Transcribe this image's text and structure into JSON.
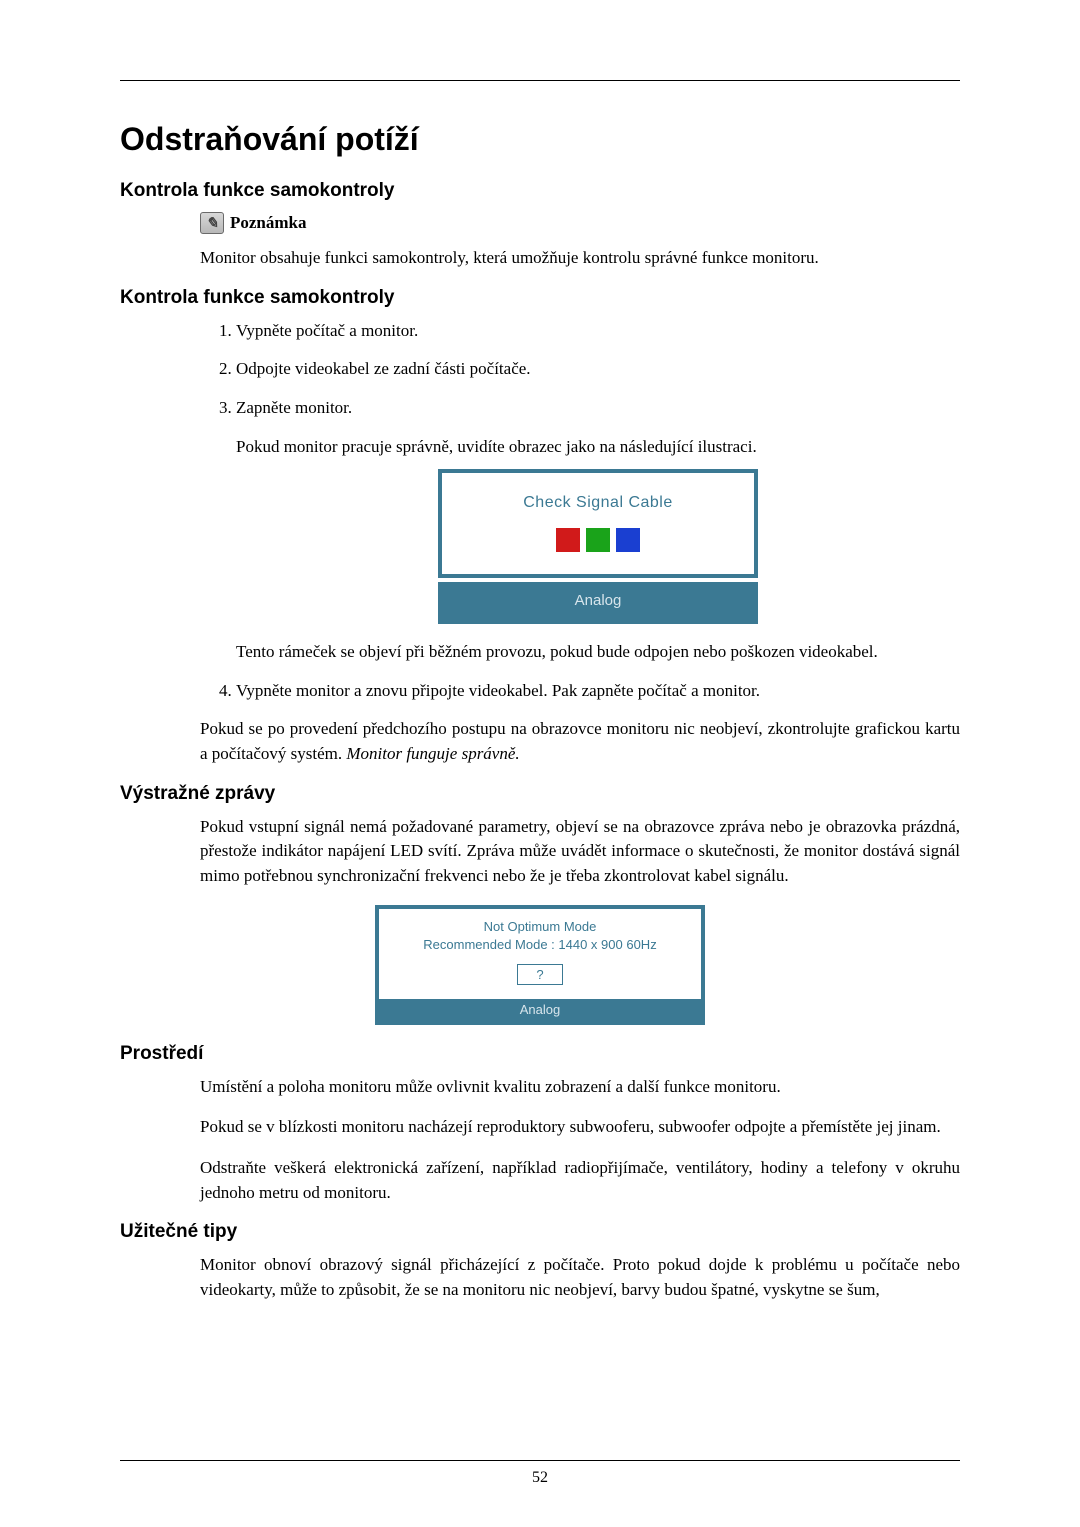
{
  "page": {
    "title": "Odstraňování potíží",
    "page_number": "52"
  },
  "section_selftest_intro": {
    "heading": "Kontrola funkce samokontroly",
    "note_label": "Poznámka",
    "note_text": "Monitor obsahuje funkci samokontroly, která umožňuje kontrolu správné funkce monitoru."
  },
  "section_selftest_steps": {
    "heading": "Kontrola funkce samokontroly",
    "step1": "Vypněte počítač a monitor.",
    "step2": "Odpojte videokabel ze zadní části počítače.",
    "step3_a": "Zapněte monitor.",
    "step3_b": "Pokud monitor pracuje správně, uvidíte obrazec jako na následující ilustraci.",
    "step3_after_img": "Tento rámeček se objeví při běžném provozu, pokud bude odpojen nebo poškozen videokabel.",
    "step4": "Vypněte monitor a znovu připojte videokabel. Pak zapněte počítač a monitor.",
    "closing_a": "Pokud se po provedení předchozího postupu na obrazovce monitoru nic neobjeví, zkontrolujte grafickou kartu a počítačový systém. ",
    "closing_b_italic": "Monitor funguje správně."
  },
  "osd1": {
    "title": "Check Signal Cable",
    "footer": "Analog",
    "colors": {
      "red": "#d11a1a",
      "green": "#1aa31a",
      "blue": "#1a3fd1",
      "border": "#3b7993"
    }
  },
  "section_warning": {
    "heading": "Výstražné zprávy",
    "text": "Pokud vstupní signál nemá požadované parametry, objeví se na obrazovce zpráva nebo je obrazovka prázdná, přestože indikátor napájení LED svítí. Zpráva může uvádět informace o skutečnosti, že monitor dostává signál mimo potřebnou synchronizační frekvenci nebo že je třeba zkontrolovat kabel signálu."
  },
  "osd2": {
    "line1": "Not Optimum Mode",
    "line2": "Recommended Mode : 1440 x 900   60Hz",
    "q": "?",
    "footer": "Analog"
  },
  "section_env": {
    "heading": "Prostředí",
    "p1": "Umístění a poloha monitoru může ovlivnit kvalitu zobrazení a další funkce monitoru.",
    "p2": "Pokud se v blízkosti monitoru nacházejí reproduktory subwooferu, subwoofer odpojte a přemístěte jej jinam.",
    "p3": "Odstraňte veškerá elektronická zařízení, například radiopřijímače, ventilátory, hodiny a telefony v okruhu jednoho metru od monitoru."
  },
  "section_tips": {
    "heading": "Užitečné tipy",
    "p1": "Monitor obnoví obrazový signál přicházející z počítače. Proto pokud dojde k problému u počítače nebo videokarty, může to způsobit, že se na monitoru nic neobjeví, barvy budou špatné, vyskytne se šum,"
  }
}
